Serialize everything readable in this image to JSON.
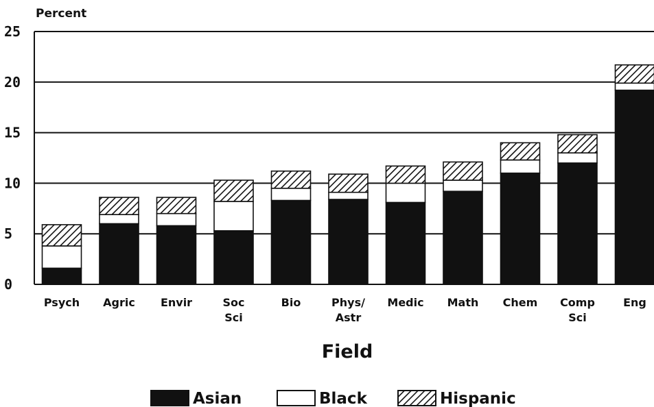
{
  "chart_data": {
    "type": "bar",
    "stacked": true,
    "ylabel": "Percent",
    "xlabel": "Field",
    "ylim": [
      0,
      25
    ],
    "yticks": [
      0,
      5,
      10,
      15,
      20,
      25
    ],
    "grid": true,
    "legend_position": "bottom",
    "categories": [
      [
        "Psych"
      ],
      [
        "Agric"
      ],
      [
        "Envir"
      ],
      [
        "Soc",
        "Sci"
      ],
      [
        "Bio"
      ],
      [
        "Phys/",
        "Astr"
      ],
      [
        "Medic"
      ],
      [
        "Math"
      ],
      [
        "Chem"
      ],
      [
        "Comp",
        "Sci"
      ],
      [
        "Eng"
      ]
    ],
    "series": [
      {
        "name": "Asian",
        "fill": "solid",
        "color": "#111111",
        "values": [
          1.6,
          6.0,
          5.8,
          5.3,
          8.3,
          8.4,
          8.1,
          9.2,
          11.0,
          12.0,
          19.2
        ]
      },
      {
        "name": "Black",
        "fill": "empty",
        "color": "#ffffff",
        "values": [
          2.2,
          0.9,
          1.2,
          2.9,
          1.2,
          0.7,
          1.9,
          1.1,
          1.3,
          1.0,
          0.7
        ]
      },
      {
        "name": "Hispanic",
        "fill": "hatched",
        "color": "#111111",
        "values": [
          2.1,
          1.7,
          1.6,
          2.1,
          1.7,
          1.8,
          1.7,
          1.8,
          1.7,
          1.8,
          1.8
        ]
      }
    ]
  }
}
